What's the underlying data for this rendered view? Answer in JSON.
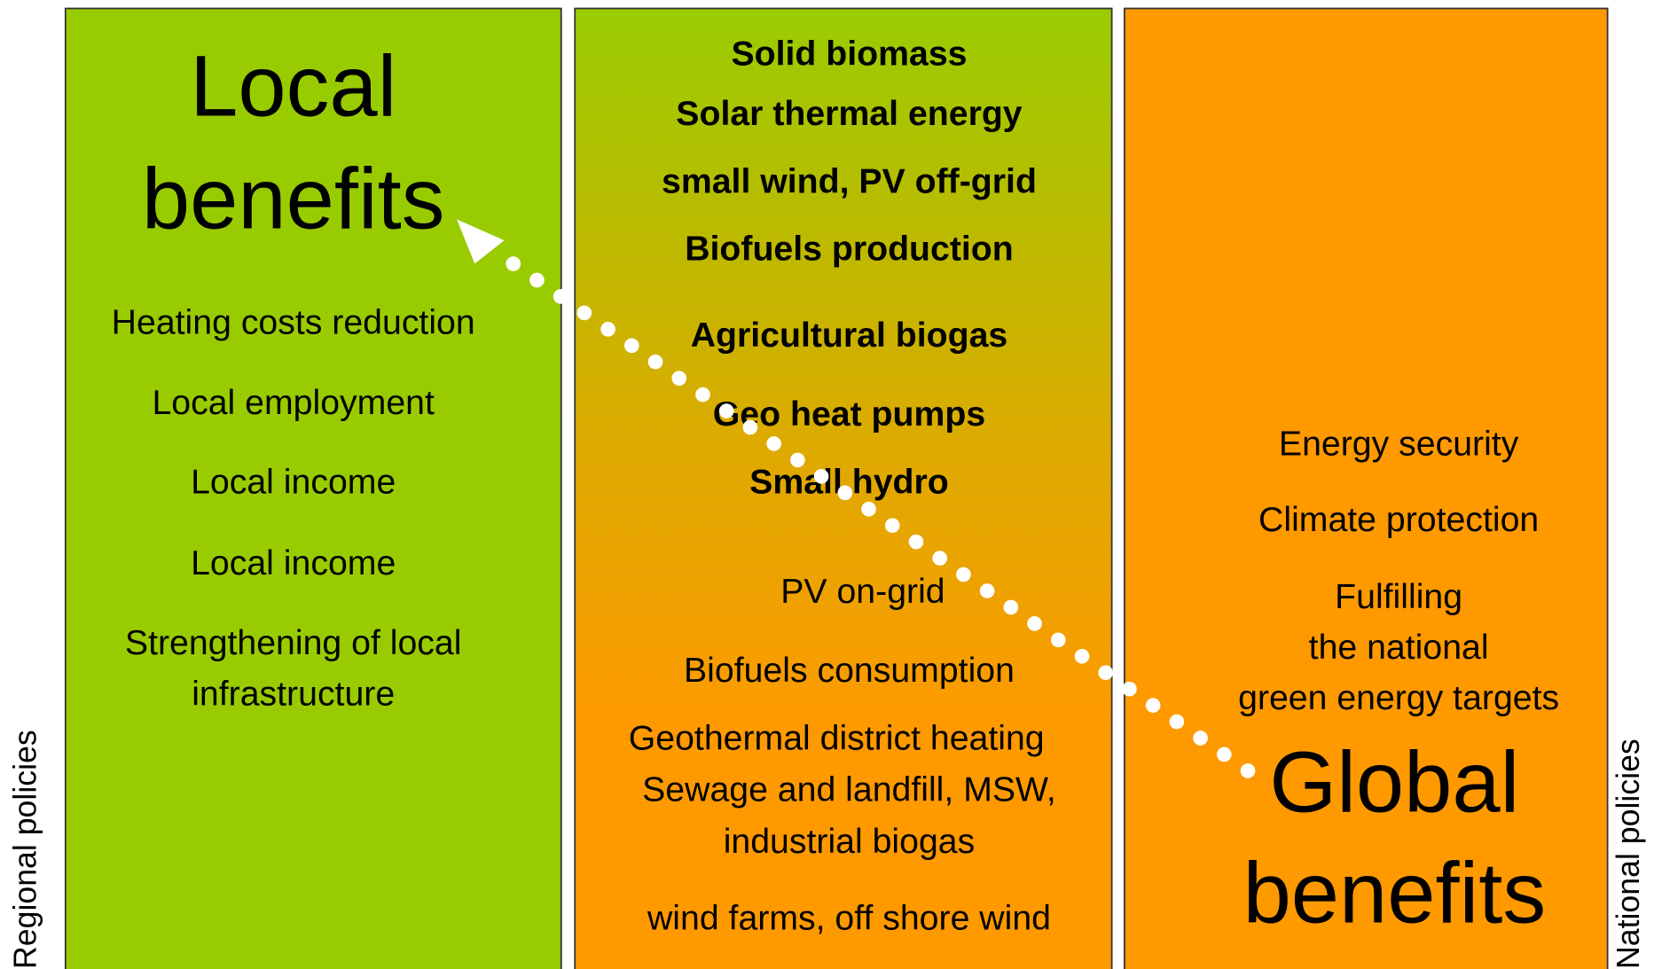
{
  "left_column": {
    "title_lines": [
      "Local",
      "benefits"
    ],
    "lines": [
      "Heating costs reduction",
      "Local employment",
      "Local income",
      "Local income",
      "Strengthening of local",
      "infrastructure"
    ]
  },
  "middle_column": {
    "bold_lines": [
      "Solid biomass",
      "Solar thermal energy",
      "small wind, PV off-grid",
      "Biofuels production",
      "Agricultural biogas",
      "Geo heat pumps",
      "Small hydro"
    ],
    "lines": [
      "PV on-grid",
      "Biofuels consumption",
      "Geothermal district heating",
      "Sewage and landfill, MSW,",
      "industrial biogas",
      "wind farms, off shore wind"
    ]
  },
  "right_column": {
    "lines": [
      "Energy security",
      "Climate protection",
      "Fulfilling",
      "the national",
      "green energy targets"
    ],
    "title_lines": [
      "Global",
      "benefits"
    ]
  },
  "side_labels": {
    "left": "Regional policies",
    "right": "National policies"
  }
}
